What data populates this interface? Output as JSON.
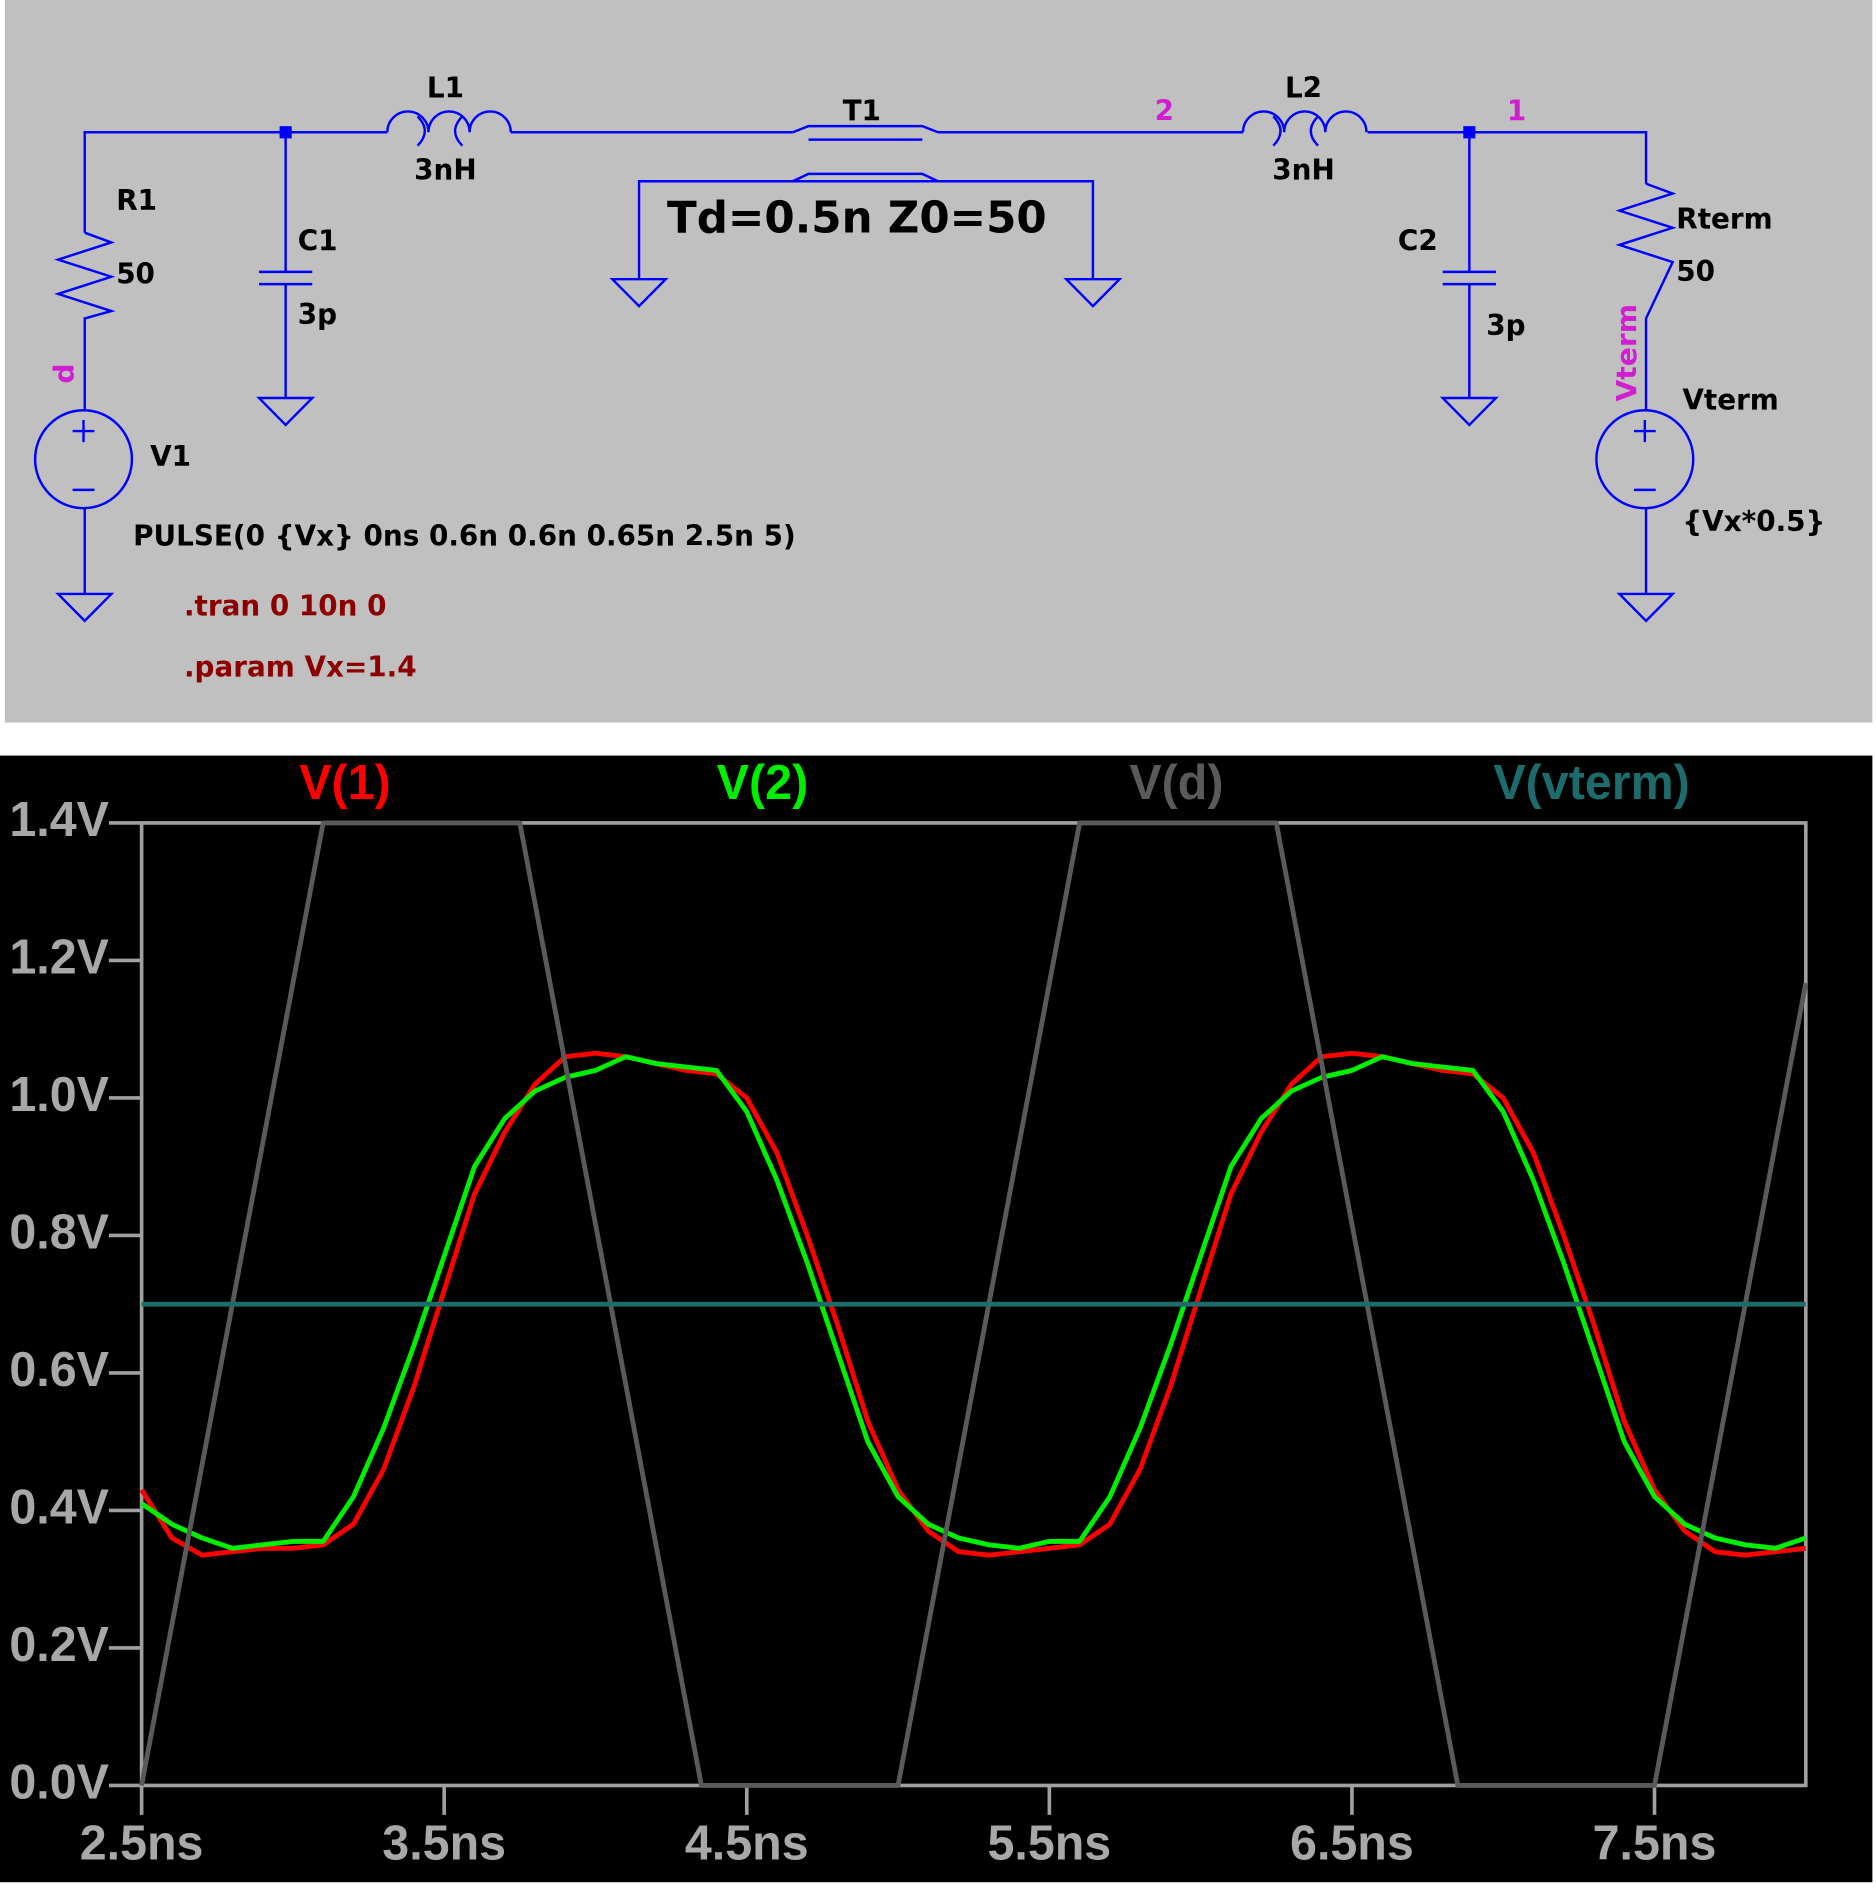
{
  "schematic": {
    "L1": "L1",
    "L1_value": "3nH",
    "T1": "T1",
    "T1_params": "Td=0.5n Z0=50",
    "node_2": "2",
    "L2": "L2",
    "L2_value": "3nH",
    "node_1": "1",
    "R1": "R1",
    "R1_value": "50",
    "C1": "C1",
    "C1_value": "3p",
    "C2": "C2",
    "C2_value": "3p",
    "Rterm": "Rterm",
    "Rterm_value": "50",
    "node_d": "d",
    "node_vterm": "Vterm",
    "Vterm": "Vterm",
    "Vterm_value": "{Vx*0.5}",
    "V1": "V1",
    "V1_value": "PULSE(0 {Vx} 0ns 0.6n 0.6n 0.65n 2.5n 5)",
    "tran": ".tran 0 10n 0",
    "param": ".param Vx=1.4"
  },
  "chart_data": {
    "type": "line",
    "x": [
      2.5,
      2.6,
      2.7,
      2.8,
      2.9,
      3.0,
      3.1,
      3.2,
      3.3,
      3.4,
      3.5,
      3.6,
      3.7,
      3.8,
      3.9,
      4.0,
      4.1,
      4.2,
      4.3,
      4.4,
      4.5,
      4.6,
      4.7,
      4.8,
      4.9,
      5.0,
      5.1,
      5.2,
      5.3,
      5.4,
      5.5,
      5.6,
      5.7,
      5.8,
      5.9,
      6.0,
      6.1,
      6.2,
      6.3,
      6.4,
      6.5,
      6.6,
      6.7,
      6.8,
      6.9,
      7.0,
      7.1,
      7.2,
      7.3,
      7.4,
      7.5,
      7.6,
      7.7,
      7.8,
      7.9,
      8.0
    ],
    "series": [
      {
        "name": "V(1)",
        "color": "#ff0000",
        "values": [
          0.43,
          0.36,
          0.335,
          0.34,
          0.345,
          0.345,
          0.35,
          0.38,
          0.46,
          0.58,
          0.72,
          0.86,
          0.95,
          1.02,
          1.06,
          1.065,
          1.06,
          1.05,
          1.04,
          1.035,
          1.0,
          0.92,
          0.8,
          0.67,
          0.53,
          0.43,
          0.37,
          0.34,
          0.335,
          0.34,
          0.345,
          0.35,
          0.38,
          0.46,
          0.58,
          0.72,
          0.86,
          0.95,
          1.02,
          1.06,
          1.065,
          1.06,
          1.05,
          1.04,
          1.035,
          1.0,
          0.92,
          0.8,
          0.67,
          0.53,
          0.43,
          0.37,
          0.34,
          0.335,
          0.34,
          0.345
        ]
      },
      {
        "name": "V(2)",
        "color": "#00ee00",
        "values": [
          0.41,
          0.38,
          0.36,
          0.345,
          0.35,
          0.355,
          0.355,
          0.42,
          0.52,
          0.64,
          0.77,
          0.9,
          0.97,
          1.01,
          1.03,
          1.04,
          1.06,
          1.05,
          1.045,
          1.04,
          0.98,
          0.88,
          0.76,
          0.63,
          0.5,
          0.42,
          0.38,
          0.36,
          0.35,
          0.345,
          0.355,
          0.355,
          0.42,
          0.52,
          0.64,
          0.77,
          0.9,
          0.97,
          1.01,
          1.03,
          1.04,
          1.06,
          1.05,
          1.045,
          1.04,
          0.98,
          0.88,
          0.76,
          0.63,
          0.5,
          0.42,
          0.38,
          0.36,
          0.35,
          0.345,
          0.36
        ]
      },
      {
        "name": "V(d)",
        "color": "#5a5a5a",
        "x": [
          2.5,
          3.1,
          3.75,
          4.35,
          5.0,
          5.6,
          6.25,
          6.85,
          7.5,
          8.0
        ],
        "values": [
          0,
          1.4,
          1.4,
          0,
          0,
          1.4,
          1.4,
          0,
          0,
          1.167
        ]
      },
      {
        "name": "V(vterm)",
        "color": "#1e6b6b",
        "x": [
          2.5,
          8.0
        ],
        "values": [
          0.7,
          0.7
        ]
      }
    ],
    "xlim": [
      2.5,
      8.0
    ],
    "ylim": [
      0,
      1.4
    ],
    "xticks": [
      {
        "value": 2.5,
        "label": "2.5ns"
      },
      {
        "value": 3.5,
        "label": "3.5ns"
      },
      {
        "value": 4.5,
        "label": "4.5ns"
      },
      {
        "value": 5.5,
        "label": "5.5ns"
      },
      {
        "value": 6.5,
        "label": "6.5ns"
      },
      {
        "value": 7.5,
        "label": "7.5ns"
      }
    ],
    "yticks": [
      {
        "value": 0,
        "label": "0.0V"
      },
      {
        "value": 0.2,
        "label": "0.2V"
      },
      {
        "value": 0.4,
        "label": "0.4V"
      },
      {
        "value": 0.6,
        "label": "0.6V"
      },
      {
        "value": 0.8,
        "label": "0.8V"
      },
      {
        "value": 1.0,
        "label": "1.0V"
      },
      {
        "value": 1.2,
        "label": "1.2V"
      },
      {
        "value": 1.4,
        "label": "1.4V"
      }
    ],
    "grid": false
  }
}
